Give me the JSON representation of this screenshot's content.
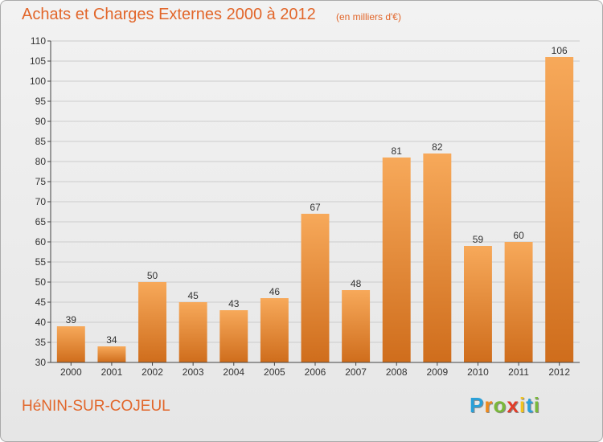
{
  "title": "Achats et Charges Externes 2000 à 2012",
  "subtitle": "(en milliers d'€)",
  "commune": "HéNIN-SUR-COJEUL",
  "brand": {
    "letters": [
      "P",
      "r",
      "o",
      "x",
      "i",
      "t",
      "i"
    ],
    "colors": [
      "#2aa0d8",
      "#f08a1c",
      "#7ab83a",
      "#e23c28",
      "#f2c41e",
      "#2aa0d8",
      "#7ab83a"
    ]
  },
  "chart_data": {
    "type": "bar",
    "title": "Achats et Charges Externes 2000 à 2012",
    "subtitle": "(en milliers d'€)",
    "categories": [
      "2000",
      "2001",
      "2002",
      "2003",
      "2004",
      "2005",
      "2006",
      "2007",
      "2008",
      "2009",
      "2010",
      "2011",
      "2012"
    ],
    "values": [
      39,
      34,
      50,
      45,
      43,
      46,
      67,
      48,
      81,
      82,
      59,
      60,
      106
    ],
    "ylim": [
      30,
      110
    ],
    "yticks": [
      30,
      35,
      40,
      45,
      50,
      55,
      60,
      65,
      70,
      75,
      80,
      85,
      90,
      95,
      100,
      105,
      110
    ],
    "grid": true,
    "colors": {
      "bar_light": "#f7a95a",
      "bar_dark": "#cf6d1c",
      "grid": "#cccccc",
      "axis": "#444444",
      "text": "#333333"
    }
  }
}
